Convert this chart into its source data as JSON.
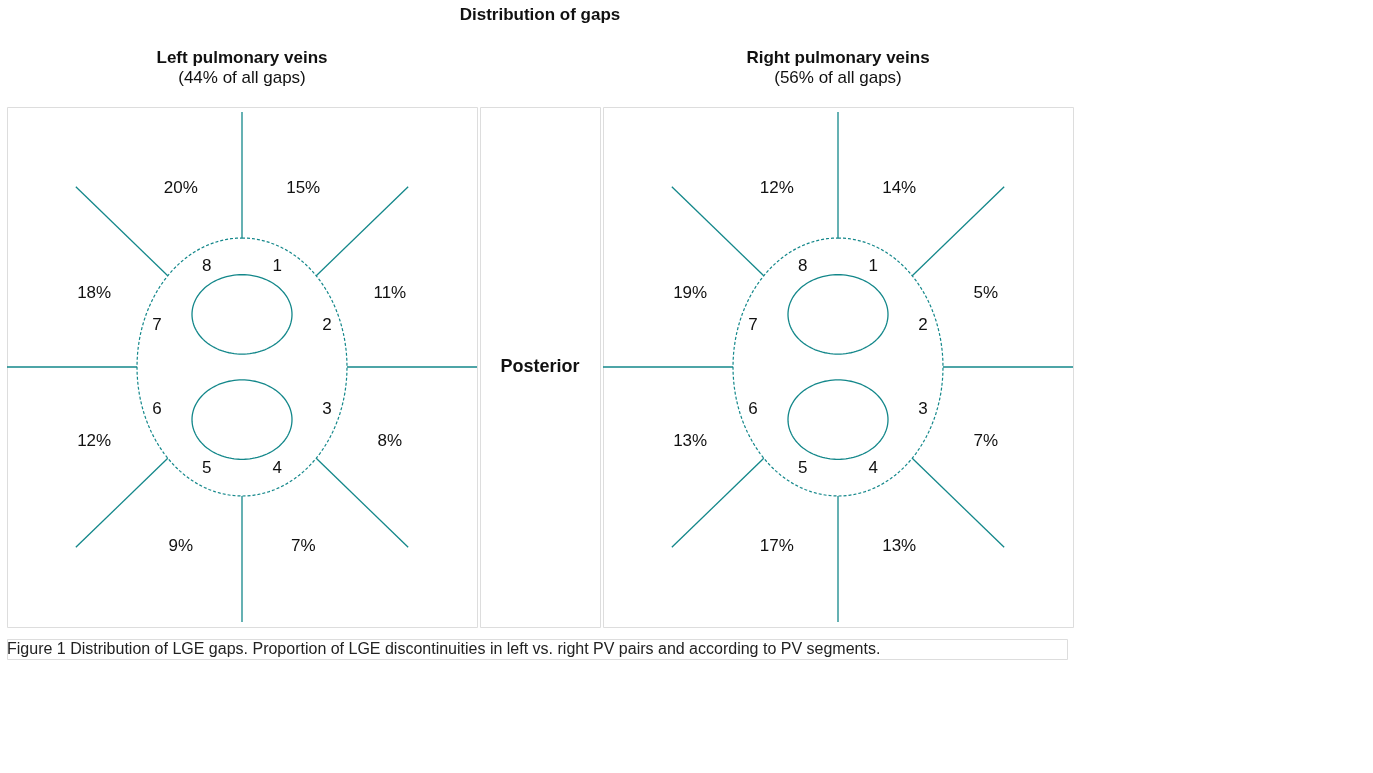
{
  "chart_data": [
    {
      "type": "other",
      "title": "Left pulmonary veins",
      "subtitle": "(44% of all gaps)",
      "color": "#13878a",
      "categories": [
        "1",
        "2",
        "3",
        "4",
        "5",
        "6",
        "7",
        "8"
      ],
      "values": [
        15,
        11,
        8,
        7,
        9,
        12,
        18,
        20
      ],
      "value_labels": [
        "15%",
        "11%",
        "8%",
        "7%",
        "9%",
        "12%",
        "18%",
        "20%"
      ],
      "annotations": [
        "Distribution of gaps",
        "Posterior",
        "Figure 1  Distribution of LGE gaps. Proportion of LGE discontinuities in left vs. right PV pairs and according to PV segments."
      ]
    },
    {
      "type": "other",
      "title": "Right pulmonary veins",
      "subtitle": "(56% of all gaps)",
      "color": "#13878a",
      "categories": [
        "1",
        "2",
        "3",
        "4",
        "5",
        "6",
        "7",
        "8"
      ],
      "values": [
        14,
        5,
        7,
        13,
        17,
        13,
        19,
        12
      ],
      "value_labels": [
        "14%",
        "5%",
        "7%",
        "13%",
        "17%",
        "13%",
        "19%",
        "12%"
      ]
    }
  ]
}
